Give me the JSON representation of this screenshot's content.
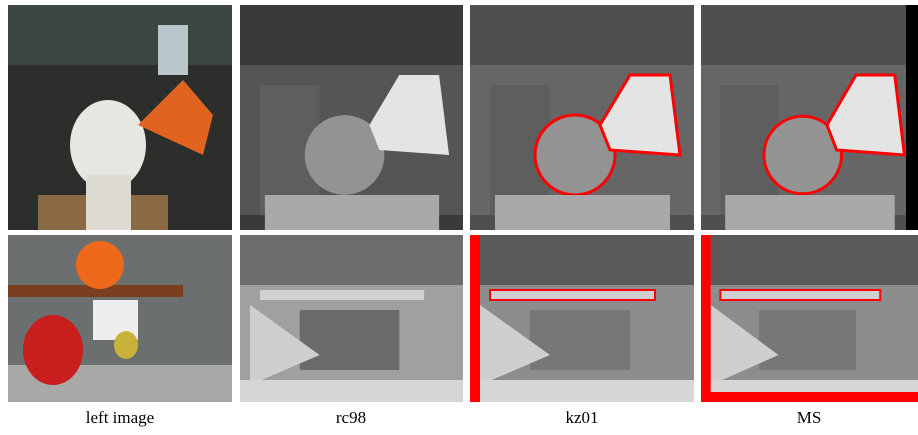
{
  "captions": [
    "left image",
    "rc98",
    "kz01",
    "MS"
  ]
}
